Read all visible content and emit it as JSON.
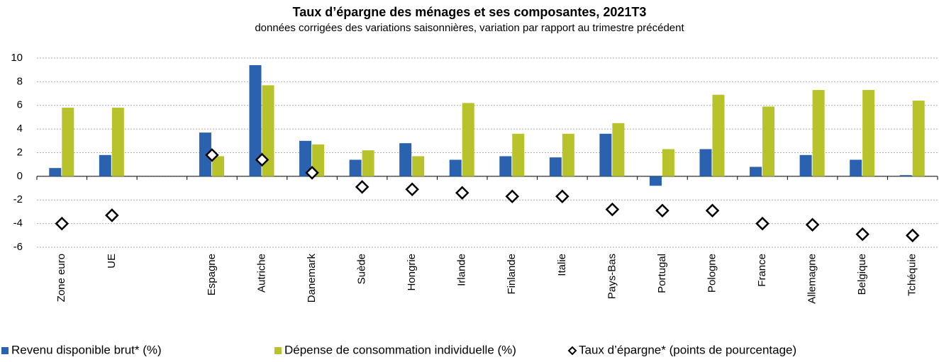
{
  "chart_data": {
    "type": "bar",
    "title": "Taux d’épargne des ménages et ses composantes, 2021T3",
    "subtitle": "données corrigées des variations saisonnières, variation par rapport au trimestre précédent",
    "categories": [
      "Zone euro",
      "UE",
      null,
      "Espagne",
      "Autriche",
      "Danemark",
      "Suède",
      "Hongrie",
      "Irlande",
      "Finlande",
      "Italie",
      "Pays-Bas",
      "Portugal",
      "Pologne",
      "France",
      "Allemagne",
      "Belgique",
      "Tchéquie"
    ],
    "series": [
      {
        "name": "Revenu disponible brut* (%)",
        "color": "#2a62b0",
        "type": "bar",
        "values": [
          0.7,
          1.8,
          null,
          3.7,
          9.4,
          3.0,
          1.4,
          2.8,
          1.4,
          1.7,
          1.6,
          3.6,
          -0.8,
          2.3,
          0.8,
          1.8,
          1.4,
          0.1
        ]
      },
      {
        "name": "Dépense de consommation individuelle (%)",
        "color": "#b8c22a",
        "type": "bar",
        "values": [
          5.8,
          5.8,
          null,
          1.7,
          7.7,
          2.7,
          2.2,
          1.7,
          6.2,
          3.6,
          3.6,
          4.5,
          2.3,
          6.9,
          5.9,
          7.3,
          7.3,
          6.4
        ]
      },
      {
        "name": "Taux d’épargne* (points de pourcentage)",
        "color": "#000000",
        "type": "scatter",
        "values": [
          -4.0,
          -3.3,
          null,
          1.8,
          1.4,
          0.3,
          -0.9,
          -1.1,
          -1.4,
          -1.7,
          -1.7,
          -2.8,
          -2.9,
          -2.9,
          -4.0,
          -4.1,
          -4.9,
          -5.0
        ]
      }
    ],
    "ylim": [
      -6,
      10
    ],
    "yticks": [
      -6,
      -4,
      -2,
      0,
      2,
      4,
      6,
      8,
      10
    ],
    "grid": true,
    "legend": "bottom"
  }
}
